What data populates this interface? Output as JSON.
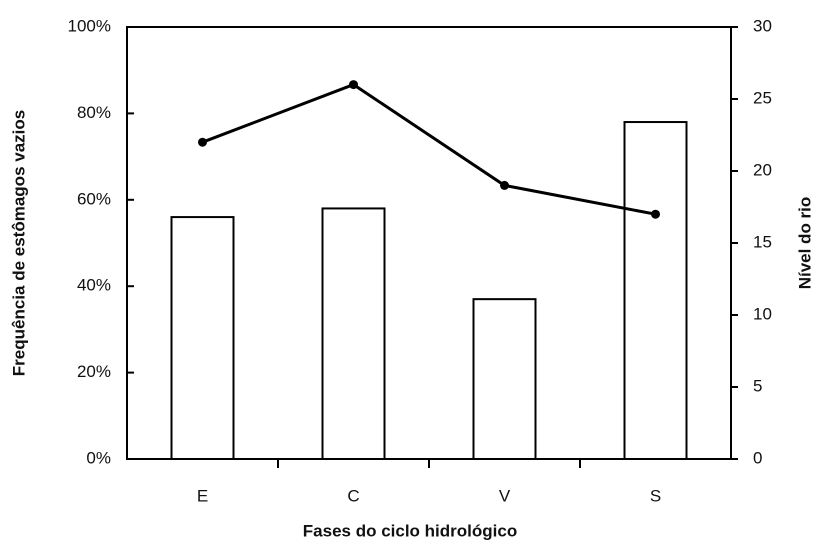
{
  "chart_data": {
    "type": "bar",
    "xlabel": "Fases do ciclo hidrológico",
    "ylabel": "Frequência de estômagos vazios",
    "y2label": "Nível do rio",
    "categories": [
      "E",
      "C",
      "V",
      "S"
    ],
    "series": [
      {
        "type": "bar",
        "axis": "y",
        "color": "#ffffff",
        "values": [
          56,
          58,
          37,
          78
        ]
      },
      {
        "type": "line",
        "axis": "y2",
        "color": "#000000",
        "values": [
          22,
          26,
          19,
          17
        ]
      }
    ],
    "ylim": [
      0,
      100
    ],
    "yticks": [
      {
        "value": 0,
        "label": "0%"
      },
      {
        "value": 20,
        "label": "20%"
      },
      {
        "value": 40,
        "label": "40%"
      },
      {
        "value": 60,
        "label": "60%"
      },
      {
        "value": 80,
        "label": "80%"
      },
      {
        "value": 100,
        "label": "100%"
      }
    ],
    "y2lim": [
      0,
      30
    ],
    "y2ticks": [
      0,
      5,
      10,
      15,
      20,
      25,
      30
    ],
    "grid": false
  }
}
